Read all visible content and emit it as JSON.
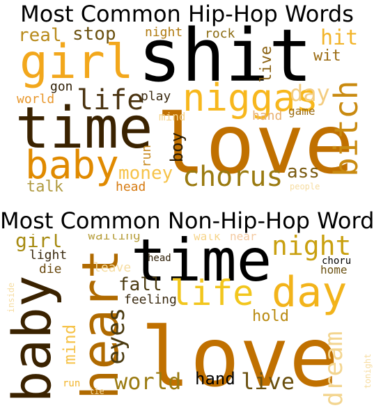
{
  "panels": [
    {
      "title": "Most Common Hip-Hop Words",
      "words": [
        {
          "text": "shit",
          "color": "#000000"
        },
        {
          "text": "love",
          "color": "#c07000"
        },
        {
          "text": "time",
          "color": "#3a2200"
        },
        {
          "text": "girl",
          "color": "#f2a71c"
        },
        {
          "text": "niggas",
          "color": "#f7b71d"
        },
        {
          "text": "baby",
          "color": "#e08a00"
        },
        {
          "text": "bitch",
          "color": "#c98a10"
        },
        {
          "text": "chorus",
          "color": "#9a7a10"
        },
        {
          "text": "life",
          "color": "#4a3310"
        },
        {
          "text": "day",
          "color": "#f3cc80"
        },
        {
          "text": "money",
          "color": "#f6c34a"
        },
        {
          "text": "real",
          "color": "#b88a1a"
        },
        {
          "text": "stop",
          "color": "#6b5110"
        },
        {
          "text": "hit",
          "color": "#f2b42a"
        },
        {
          "text": "ass",
          "color": "#7a5a10"
        },
        {
          "text": "talk",
          "color": "#b09a40"
        },
        {
          "text": "head",
          "color": "#d67a10"
        },
        {
          "text": "run",
          "color": "#c88a20"
        },
        {
          "text": "boy",
          "color": "#2a1a00"
        },
        {
          "text": "live",
          "color": "#8a6010"
        },
        {
          "text": "wit",
          "color": "#9a6a10"
        },
        {
          "text": "night",
          "color": "#b07a10"
        },
        {
          "text": "rock",
          "color": "#8a6a10"
        },
        {
          "text": "gon",
          "color": "#2a1a00"
        },
        {
          "text": "world",
          "color": "#e8962a"
        },
        {
          "text": "play",
          "color": "#3a2a10"
        },
        {
          "text": "mind",
          "color": "#f6d48a"
        },
        {
          "text": "hand",
          "color": "#e8b070"
        },
        {
          "text": "game",
          "color": "#9a6a10"
        },
        {
          "text": "people",
          "color": "#f6dca0"
        }
      ]
    },
    {
      "title": "Most Common Non-Hip-Hop Words",
      "words": [
        {
          "text": "love",
          "color": "#c07000"
        },
        {
          "text": "time",
          "color": "#000000"
        },
        {
          "text": "baby",
          "color": "#3a2200"
        },
        {
          "text": "heart",
          "color": "#b06a00"
        },
        {
          "text": "day",
          "color": "#f2b31a"
        },
        {
          "text": "life",
          "color": "#f2c61d"
        },
        {
          "text": "night",
          "color": "#c9a010"
        },
        {
          "text": "world",
          "color": "#9a7a10"
        },
        {
          "text": "live",
          "color": "#6a5010"
        },
        {
          "text": "eyes",
          "color": "#4a3a10"
        },
        {
          "text": "dream",
          "color": "#f3d590"
        },
        {
          "text": "girl",
          "color": "#a68a10"
        },
        {
          "text": "fall",
          "color": "#4a3a10"
        },
        {
          "text": "hold",
          "color": "#b98a10"
        },
        {
          "text": "mind",
          "color": "#f6c34a"
        },
        {
          "text": "hand",
          "color": "#000000"
        },
        {
          "text": "waiting",
          "color": "#b8a040"
        },
        {
          "text": "walk",
          "color": "#f6d48a"
        },
        {
          "text": "hear",
          "color": "#f3c9a0"
        },
        {
          "text": "light",
          "color": "#3a2a10"
        },
        {
          "text": "die",
          "color": "#6a4a10"
        },
        {
          "text": "leave",
          "color": "#f6dca0"
        },
        {
          "text": "head",
          "color": "#2a1a00"
        },
        {
          "text": "feeling",
          "color": "#3a2a10"
        },
        {
          "text": "choru",
          "color": "#000000"
        },
        {
          "text": "home",
          "color": "#6a5010"
        },
        {
          "text": "inside",
          "color": "#f6dca0"
        },
        {
          "text": "tonight",
          "color": "#f6dca0"
        },
        {
          "text": "run",
          "color": "#f2b42a"
        },
        {
          "text": "lie",
          "color": "#f6dca0"
        }
      ]
    }
  ]
}
